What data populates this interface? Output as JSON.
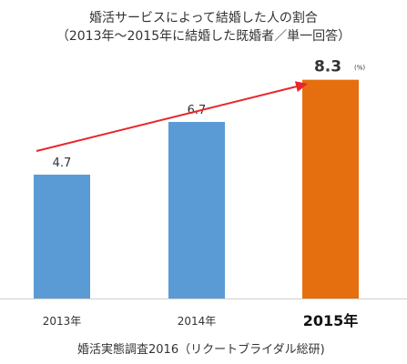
{
  "title_lines": [
    "婚活サービスによって結婚した人の割合",
    "（2013年〜2015年に結婚した既婚者／単一回答）"
  ],
  "source": "婚活実態調査2016（リクートブライダル総研)",
  "colors": {
    "bar_default": "#5b9bd5",
    "bar_highlight": "#e56f0e",
    "arrow": "#e8262b",
    "axis": "#555555",
    "text": "#333333"
  },
  "chart_data": {
    "type": "bar",
    "categories": [
      "2013年",
      "2014年",
      "2015年"
    ],
    "values": [
      4.7,
      6.7,
      8.3
    ],
    "value_labels": [
      "4.7",
      "6.7",
      "8.3"
    ],
    "unit": "(%)",
    "highlight_index": 2,
    "ylim": [
      0,
      9.6
    ],
    "grid": false,
    "trend_arrow": true
  }
}
